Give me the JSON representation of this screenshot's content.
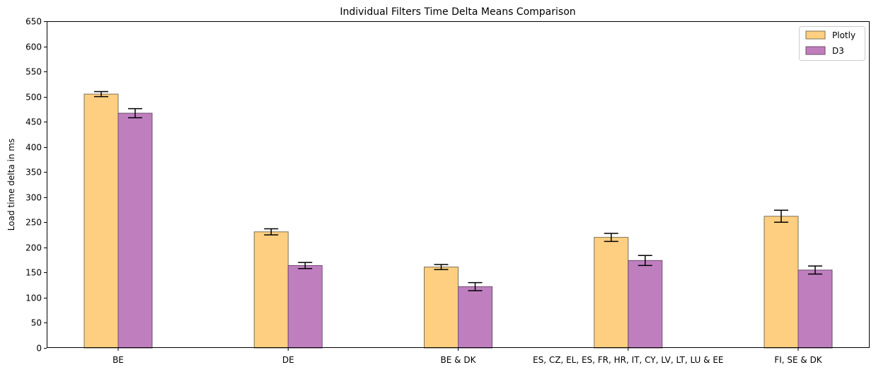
{
  "chart_data": {
    "type": "bar",
    "title": "Individual Filters Time Delta Means Comparison",
    "xlabel": "",
    "ylabel": "Load time delta in ms",
    "ylim": [
      0,
      650
    ],
    "yticks": [
      0,
      50,
      100,
      150,
      200,
      250,
      300,
      350,
      400,
      450,
      500,
      550,
      600,
      650
    ],
    "categories": [
      "BE",
      "DE",
      "BE & DK",
      "ES, CZ, EL, ES, FR, HR, IT, CY, LV, LT, LU & EE",
      "FI, SE & DK"
    ],
    "series": [
      {
        "name": "Plotly",
        "color": "#fecf80",
        "edge_color": "#7f7055",
        "values": [
          505,
          231,
          161,
          220,
          262
        ],
        "errors": [
          5,
          6,
          5,
          8,
          12
        ]
      },
      {
        "name": "D3",
        "color": "#bf7fbf",
        "edge_color": "#6e4d6e",
        "values": [
          467,
          164,
          122,
          174,
          155
        ],
        "errors": [
          9,
          6,
          8,
          10,
          8
        ]
      }
    ],
    "error_bars": true,
    "grid": false,
    "legend_position": "top-right"
  }
}
